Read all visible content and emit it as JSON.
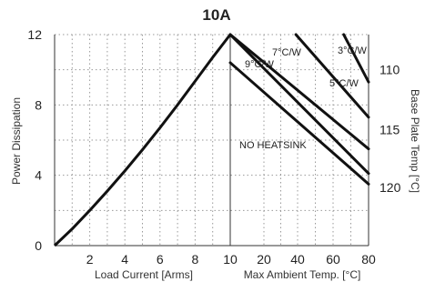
{
  "chart_data": {
    "type": "line",
    "title": "10A",
    "left_panel": {
      "xlabel": "Load Current  [Arms]",
      "x_ticks": [
        "2",
        "4",
        "6",
        "8",
        "10"
      ],
      "xlim": [
        0,
        10
      ],
      "ylabel": "Power Dissipation",
      "y_ticks": [
        "0",
        "4",
        "8",
        "12"
      ],
      "ylim": [
        0,
        12
      ],
      "series": [
        {
          "x": [
            0,
            1,
            2,
            3,
            4,
            5,
            6,
            7,
            8,
            9,
            10
          ],
          "y": [
            0,
            0.95,
            2.0,
            3.1,
            4.25,
            5.45,
            6.7,
            8.0,
            9.35,
            10.7,
            12.0
          ]
        }
      ]
    },
    "right_panel": {
      "xlabel": "Max Ambient Temp. [°C]",
      "x_ticks": [
        "10",
        "20",
        "40",
        "60",
        "80"
      ],
      "x_positions": [
        10,
        20,
        40,
        60,
        80
      ],
      "y2label": "Base Plate Temp [°C]",
      "y2_ticks": [
        "110",
        "115",
        "120"
      ],
      "y2_positions_power": [
        10,
        6.6,
        3.3
      ],
      "series": [
        {
          "name": "NO HEATSINK",
          "x": [
            10,
            80
          ],
          "y": [
            10.4,
            3.5
          ]
        },
        {
          "name": "9°C/W",
          "x": [
            10,
            80
          ],
          "y": [
            12.0,
            4.1
          ]
        },
        {
          "name": "7°C/W",
          "x": [
            10,
            80
          ],
          "y": [
            12.0,
            5.5
          ]
        },
        {
          "name": "5°C/W",
          "x": [
            39,
            80
          ],
          "y": [
            12.0,
            7.3
          ]
        },
        {
          "name": "3°C/W",
          "x": [
            66,
            80
          ],
          "y": [
            12.0,
            9.3
          ]
        }
      ]
    },
    "grid": true,
    "grid_style": "dotted",
    "colors": {
      "line": "#111111",
      "grid": "#999999",
      "axis": "#333333"
    }
  }
}
